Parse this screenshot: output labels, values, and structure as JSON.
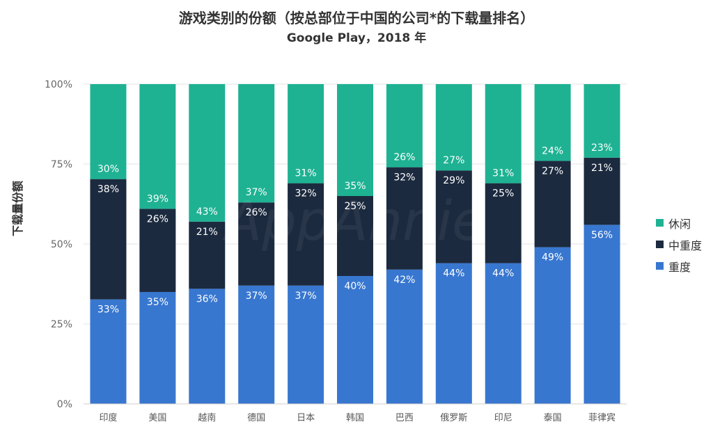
{
  "chart_data": {
    "type": "bar",
    "stacked": true,
    "title": "游戏类别的份额（按总部位于中国的公司*的下载量排名）",
    "subtitle": "Google Play，2018 年",
    "ylabel": "下载量份额",
    "ylim": [
      0,
      100
    ],
    "yticks": [
      "0%",
      "25%",
      "50%",
      "75%",
      "100%"
    ],
    "grid": true,
    "legend": "right",
    "watermark": "AppAnnie",
    "categories": [
      "印度",
      "美国",
      "越南",
      "德国",
      "日本",
      "韩国",
      "巴西",
      "俄罗斯",
      "印尼",
      "泰国",
      "菲律宾"
    ],
    "series": [
      {
        "name": "重度",
        "color": "#3877d0",
        "values": [
          33,
          35,
          36,
          37,
          37,
          40,
          42,
          44,
          44,
          49,
          56
        ],
        "labels": [
          "33%",
          "35%",
          "36%",
          "37%",
          "37%",
          "40%",
          "42%",
          "44%",
          "44%",
          "49%",
          "56%"
        ]
      },
      {
        "name": "中重度",
        "color": "#1c2a3f",
        "values": [
          38,
          26,
          21,
          26,
          32,
          25,
          32,
          29,
          25,
          27,
          21
        ],
        "labels": [
          "38%",
          "26%",
          "21%",
          "26%",
          "32%",
          "25%",
          "32%",
          "29%",
          "25%",
          "27%",
          "21%"
        ]
      },
      {
        "name": "休闲",
        "color": "#1eb293",
        "values": [
          30,
          39,
          43,
          37,
          31,
          35,
          26,
          27,
          31,
          24,
          23
        ],
        "labels": [
          "30%",
          "39%",
          "43%",
          "37%",
          "31%",
          "35%",
          "26%",
          "27%",
          "31%",
          "24%",
          "23%"
        ]
      }
    ]
  }
}
